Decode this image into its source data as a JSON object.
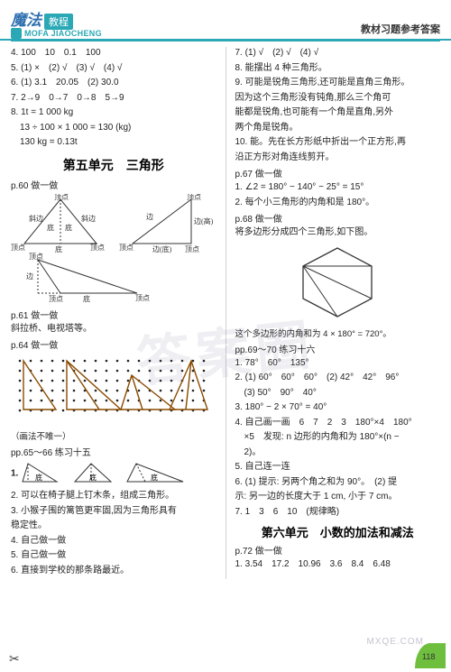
{
  "header": {
    "logo_cn": "魔法",
    "logo_badge": "教程",
    "logo_en": "MOFA JIAOCHENG",
    "right": "教材习题参考答案"
  },
  "left": {
    "l4": "4. 100　10　0.1　100",
    "l5": "5. (1) ×　(2) √　(3) √　(4) √",
    "l6": "6. (1) 3.1　20.05　(2) 30.0",
    "l7": "7. 2→9　0→7　0→8　5→9",
    "l8a": "8. 1t = 1 000 kg",
    "l8b": "　13 ÷ 100 × 1 000 = 130 (kg)",
    "l8c": "　130 kg = 0.13t",
    "unit5": "第五单元　三角形",
    "p60": "p.60 做一做",
    "tri_labels": {
      "t1": {
        "apex": "顶点",
        "left": "斜边",
        "right": "斜边",
        "inL": "底",
        "inR": "底",
        "base": "底",
        "blv": "顶点",
        "brv": "顶点"
      },
      "t2": {
        "apex": "顶点",
        "right": "边(高)",
        "base": "边(底)",
        "leftside": "边",
        "bl": "顶点",
        "br": "顶点"
      },
      "t3": {
        "tl": "顶点",
        "left": "边",
        "base": "底",
        "right": "顶点",
        "bl": "顶点"
      }
    },
    "p61": "p.61 做一做",
    "p61a": "斜拉桥、电视塔等。",
    "p64": "p.64 做一做",
    "p64cap": "（画法不唯一）",
    "pp65": "pp.65～66 练习十五",
    "q1": "1.",
    "q1labels": [
      "底",
      "底",
      "底"
    ],
    "q2": "2. 可以在椅子腿上钉木条，组成三角形。",
    "q3a": "3. 小猴子围的篱笆更牢固,因为三角形具有",
    "q3b": "稳定性。",
    "q4": "4. 自己做一做",
    "q5": "5. 自己做一做",
    "q6": "6. 直接到学校的那条路最近。"
  },
  "right": {
    "l7": "7. (1) √　(2) √　(4) √",
    "l8": "8. 能摆出 4 种三角形。",
    "l9a": "9. 可能是锐角三角形,还可能是直角三角形。",
    "l9b": "因为这个三角形没有钝角,那么三个角可",
    "l9c": "能都是锐角,也可能有一个角是直角,另外",
    "l9d": "两个角是锐角。",
    "l10a": "10. 能。先在长方形纸中折出一个正方形,再",
    "l10b": "沿正方形对角连线剪开。",
    "p67": "p.67 做一做",
    "p67a": "1. ∠2 = 180° − 140° − 25° = 15°",
    "p67b": "2. 每个小三角形的内角和是 180°。",
    "p68": "p.68 做一做",
    "p68a": "将多边形分成四个三角形,如下图。",
    "hexcap": "这个多边形的内角和为 4 × 180° = 720°。",
    "pp69": "pp.69～70 练习十六",
    "r1": "1. 78°　60°　135°",
    "r2a": "2. (1) 60°　60°　60°　(2) 42°　42°　96°",
    "r2b": "　(3) 50°　90°　40°",
    "r3": "3. 180° − 2 × 70° = 40°",
    "r4a": "4. 自己画一画　6　7　2　3　180°×4　180°",
    "r4b": "　×5　发现: n 边形的内角和为 180°×(n −",
    "r4c": "　2)。",
    "r5": "5. 自己连一连",
    "r6a": "6. (1) 提示: 另两个角之和为 90°。　(2) 提",
    "r6b": "示: 另一边的长度大于 1 cm, 小于 7 cm。",
    "r7": "7. 1　3　6　10　(规律略)",
    "unit6": "第六单元　小数的加法和减法",
    "p72": "p.72 做一做",
    "r72": "1. 3.54　17.2　10.96　3.6　8.4　6.48"
  },
  "watermark": "答案圈",
  "watermark2": "MXQE.COM"
}
